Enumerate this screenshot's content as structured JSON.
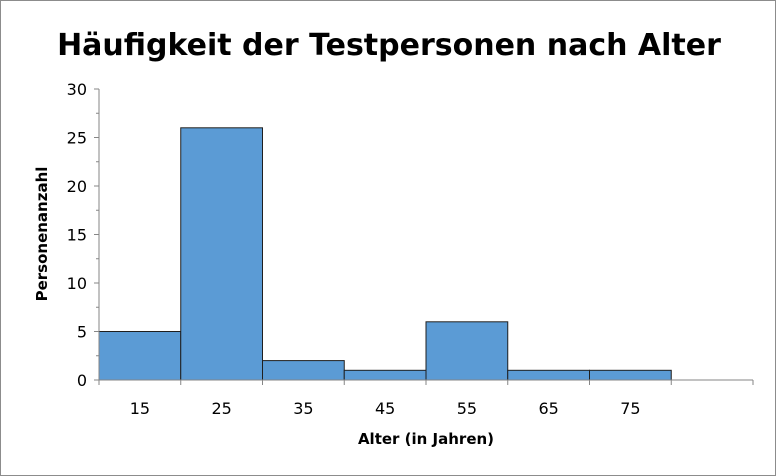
{
  "chart_data": {
    "type": "bar",
    "title": "Häufigkeit der Testpersonen nach Alter",
    "xlabel": "Alter (in Jahren)",
    "ylabel": "Personenanzahl",
    "categories": [
      "15",
      "25",
      "35",
      "45",
      "55",
      "65",
      "75"
    ],
    "values": [
      5,
      26,
      2,
      1,
      6,
      1,
      1
    ],
    "ylim": [
      0,
      30
    ],
    "yticks": [
      "0",
      "5",
      "10",
      "15",
      "20",
      "25",
      "30"
    ],
    "grid": false,
    "legend": "none",
    "bar_color": "#5b9bd5",
    "bar_edge_color": "#1f1f1f"
  }
}
